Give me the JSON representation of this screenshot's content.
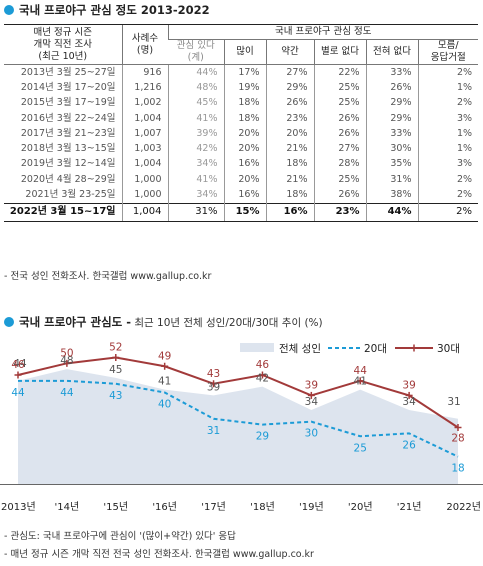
{
  "section1": {
    "title": "국내 프로야구 관심 정도 2013-2022",
    "headers": {
      "period": "매년 정규 시즌\n개막 직전 조사\n(최근 10년)",
      "n": "사례수\n(명)",
      "group": "국내 프로야구 관심 정도",
      "interested": "관심 있다\n(계)",
      "much": "많이",
      "some": "약간",
      "notmuch": "별로 없다",
      "none": "전혀 없다",
      "dk": "모름/\n응답거절"
    },
    "rows": [
      [
        "2013년 3월 25~27일",
        "916",
        "44%",
        "17%",
        "27%",
        "22%",
        "33%",
        "2%"
      ],
      [
        "2014년 3월 17~20일",
        "1,216",
        "48%",
        "19%",
        "29%",
        "25%",
        "26%",
        "1%"
      ],
      [
        "2015년 3월 17~19일",
        "1,002",
        "45%",
        "18%",
        "26%",
        "25%",
        "29%",
        "2%"
      ],
      [
        "2016년 3월 22~24일",
        "1,004",
        "41%",
        "18%",
        "23%",
        "26%",
        "29%",
        "3%"
      ],
      [
        "2017년 3월 21~23일",
        "1,007",
        "39%",
        "20%",
        "20%",
        "26%",
        "33%",
        "1%"
      ],
      [
        "2018년 3월 13~15일",
        "1,003",
        "42%",
        "20%",
        "21%",
        "27%",
        "30%",
        "1%"
      ],
      [
        "2019년 3월 12~14일",
        "1,004",
        "34%",
        "16%",
        "18%",
        "28%",
        "35%",
        "3%"
      ],
      [
        "2020년 4월 28~29일",
        "1,000",
        "41%",
        "20%",
        "21%",
        "25%",
        "31%",
        "2%"
      ],
      [
        "2021년 3월 23-25일",
        "1,000",
        "34%",
        "16%",
        "18%",
        "26%",
        "38%",
        "2%"
      ]
    ],
    "last_row": [
      "2022년 3월 15~17일",
      "1,004",
      "31%",
      "15%",
      "16%",
      "23%",
      "44%",
      "2%"
    ],
    "note": "- 전국 성인 전화조사. 한국갤럽 www.gallup.co.kr"
  },
  "section2": {
    "title": "국내 프로야구 관심도 -",
    "subtitle": " 최근 10년 전체 성인/20대/30대 추이 (%)",
    "note1": "- 관심도: 국내 프로야구에 관심이 '(많이+약간) 있다' 응답",
    "note2": "- 매년 정규 시즌 개막 직전 전국 성인 전화조사. 한국갤럽 www.gallup.co.kr"
  },
  "chart_data": {
    "type": "line",
    "categories": [
      "2013년",
      "'14년",
      "'15년",
      "'16년",
      "'17년",
      "'18년",
      "'19년",
      "'20년",
      "'21년",
      "2022년"
    ],
    "series": [
      {
        "name": "전체 성인",
        "style": "area",
        "color": "#dde4ee",
        "values": [
          44,
          48,
          45,
          41,
          39,
          42,
          34,
          41,
          34,
          31
        ]
      },
      {
        "name": "20대",
        "style": "dashed",
        "color": "#1c9bd6",
        "values": [
          44,
          44,
          43,
          40,
          31,
          29,
          30,
          25,
          26,
          18
        ]
      },
      {
        "name": "30대",
        "style": "solid-marker",
        "color": "#a23a3a",
        "values": [
          46,
          50,
          52,
          49,
          43,
          46,
          39,
          44,
          39,
          28
        ]
      }
    ],
    "ylim": [
      10,
      58
    ],
    "legend": "top-right",
    "grid": false
  },
  "colors": {
    "accent": "#1c9bd6",
    "series30": "#a23a3a",
    "area": "#dde4ee"
  }
}
